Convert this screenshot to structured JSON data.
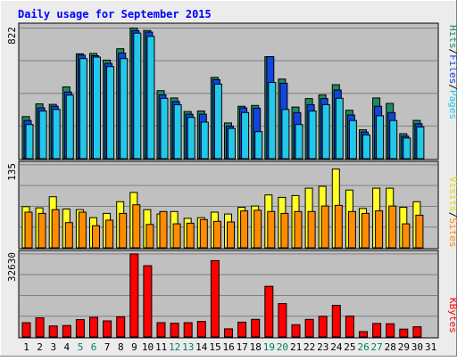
{
  "chart_data": {
    "type": "bar",
    "title": "Daily usage for September 2015",
    "categories": [
      "1",
      "2",
      "3",
      "4",
      "5",
      "6",
      "7",
      "8",
      "9",
      "10",
      "11",
      "12",
      "13",
      "14",
      "15",
      "16",
      "17",
      "18",
      "19",
      "20",
      "21",
      "22",
      "23",
      "24",
      "25",
      "26",
      "27",
      "28",
      "29",
      "30",
      "31"
    ],
    "weekend_categories": [
      "5",
      "6",
      "12",
      "13",
      "19",
      "20",
      "26",
      "27"
    ],
    "panels": [
      {
        "id": "top",
        "ymax_label": "822",
        "ylim": [
          0,
          822
        ],
        "side_label": [
          "Pages",
          "Files",
          "Hits"
        ],
        "series": [
          {
            "name": "Hits",
            "color": "#1e8a60",
            "values": [
              265,
              345,
              342,
              452,
              660,
              662,
              620,
              692,
              822,
              807,
              428,
              382,
              297,
              300,
              512,
              225,
              330,
              335,
              642,
              501,
              325,
              378,
              402,
              466,
              305,
              182,
              382,
              348,
              157,
              241,
              0
            ]
          },
          {
            "name": "Files",
            "color": "#1444e0",
            "values": [
              240,
              320,
              330,
              420,
              652,
              648,
              600,
              665,
              806,
              797,
              402,
              360,
              280,
              280,
              497,
              205,
              320,
              318,
              642,
              475,
              290,
              340,
              378,
              432,
              275,
              168,
              330,
              290,
              142,
              220,
              0
            ]
          },
          {
            "name": "Pages",
            "color": "#22c8e8",
            "values": [
              215,
              300,
              310,
              400,
              630,
              640,
              580,
              630,
              790,
              770,
              380,
              340,
              260,
              230,
              470,
              190,
              290,
              170,
              480,
              310,
              215,
              300,
              340,
              380,
              240,
              150,
              270,
              240,
              130,
              200,
              0
            ]
          }
        ]
      },
      {
        "id": "middle",
        "ymax_label": "135",
        "ylim": [
          0,
          135
        ],
        "side_label": [
          "Sites",
          "Visits"
        ],
        "series": [
          {
            "name": "Visits",
            "color": "#ffff22",
            "values": [
              67,
              65,
              83,
              63,
              62,
              49,
              56,
              75,
              90,
              62,
              55,
              59,
              48,
              49,
              58,
              55,
              66,
              68,
              86,
              82,
              85,
              97,
              100,
              128,
              94,
              64,
              97,
              97,
              66,
              75,
              0
            ]
          },
          {
            "name": "Sites",
            "color": "#ff8c00",
            "values": [
              58,
              56,
              62,
              41,
              58,
              36,
              45,
              56,
              70,
              38,
              59,
              39,
              40,
              46,
              43,
              42,
              60,
              61,
              59,
              56,
              59,
              59,
              68,
              69,
              59,
              56,
              60,
              68,
              39,
              53,
              0
            ]
          }
        ]
      },
      {
        "id": "bottom",
        "ymax_label": "32630",
        "ylim": [
          0,
          32630
        ],
        "side_label": [
          "KBytes"
        ],
        "series": [
          {
            "name": "KBytes",
            "color": "#ff0000",
            "values": [
              5600,
              7500,
              4300,
              4500,
              6800,
              7700,
              6300,
              7900,
              32630,
              28000,
              5600,
              5400,
              5600,
              6100,
              30000,
              3200,
              5800,
              6900,
              19900,
              13100,
              4800,
              6900,
              8100,
              12400,
              8200,
              2100,
              5300,
              5200,
              3100,
              4000,
              0
            ]
          }
        ]
      }
    ],
    "colors": {
      "title": "#0000ff",
      "plot_bg": "#c0c0c0",
      "frame_bg": "#ececec",
      "bar_outline": "#000000",
      "axis_label": "#000000",
      "weekend_label": "#00805a",
      "grid": "#808080"
    }
  }
}
